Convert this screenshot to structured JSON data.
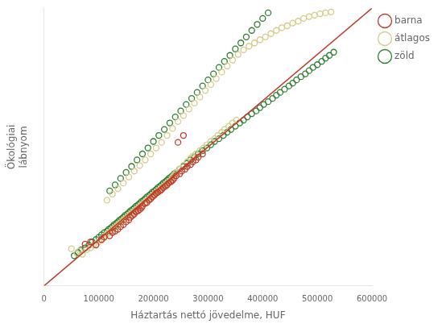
{
  "chart_data": {
    "type": "scatter",
    "xlabel": "Háztartás nettó jövedelme, HUF",
    "ylabel": "Ökológiai\nlábnyom",
    "xlim": [
      0,
      600000
    ],
    "ylim": [
      0,
      600000
    ],
    "xticks": [
      0,
      100000,
      200000,
      300000,
      400000,
      500000,
      600000
    ],
    "yticks": [
      0,
      100000,
      200000,
      300000,
      400000,
      500000,
      600000
    ],
    "tick_labels": "x",
    "grid": false,
    "legend": "right",
    "marker": "circle",
    "series": [
      {
        "type": "line",
        "color": "#c0392b",
        "values": [
          [
            0,
            0
          ],
          [
            600000,
            600000
          ]
        ]
      },
      {
        "name": "barna",
        "color": "#c0392b",
        "values": [
          [
            75000,
            90000
          ],
          [
            85000,
            95000
          ],
          [
            95000,
            88000
          ],
          [
            105000,
            100000
          ],
          [
            110000,
            105000
          ],
          [
            120000,
            108000
          ],
          [
            125000,
            115000
          ],
          [
            130000,
            118000
          ],
          [
            135000,
            122000
          ],
          [
            140000,
            128000
          ],
          [
            145000,
            132000
          ],
          [
            150000,
            138000
          ],
          [
            155000,
            142000
          ],
          [
            158000,
            148000
          ],
          [
            162000,
            152000
          ],
          [
            165000,
            155000
          ],
          [
            168000,
            160000
          ],
          [
            172000,
            162000
          ],
          [
            175000,
            165000
          ],
          [
            178000,
            168000
          ],
          [
            180000,
            172000
          ],
          [
            185000,
            178000
          ],
          [
            188000,
            180000
          ],
          [
            192000,
            185000
          ],
          [
            195000,
            188000
          ],
          [
            198000,
            192000
          ],
          [
            202000,
            196000
          ],
          [
            205000,
            200000
          ],
          [
            208000,
            202000
          ],
          [
            212000,
            205000
          ],
          [
            215000,
            208000
          ],
          [
            218000,
            212000
          ],
          [
            222000,
            215000
          ],
          [
            225000,
            218000
          ],
          [
            228000,
            222000
          ],
          [
            232000,
            225000
          ],
          [
            235000,
            228000
          ],
          [
            238000,
            232000
          ],
          [
            242000,
            238000
          ],
          [
            248000,
            242000
          ],
          [
            252000,
            248000
          ],
          [
            258000,
            252000
          ],
          [
            262000,
            258000
          ],
          [
            268000,
            262000
          ],
          [
            272000,
            268000
          ],
          [
            278000,
            272000
          ],
          [
            282000,
            278000
          ],
          [
            290000,
            285000
          ],
          [
            245000,
            310000
          ],
          [
            255000,
            325000
          ]
        ]
      },
      {
        "name": "átlagos",
        "color": "#d4cc88",
        "values": [
          [
            50000,
            80000
          ],
          [
            60000,
            70000
          ],
          [
            65000,
            75000
          ],
          [
            70000,
            68000
          ],
          [
            78000,
            78000
          ],
          [
            85000,
            82000
          ],
          [
            90000,
            88000
          ],
          [
            95000,
            90000
          ],
          [
            100000,
            95000
          ],
          [
            105000,
            98000
          ],
          [
            108000,
            102000
          ],
          [
            112000,
            108000
          ],
          [
            115000,
            112000
          ],
          [
            118000,
            115000
          ],
          [
            122000,
            118000
          ],
          [
            125000,
            122000
          ],
          [
            128000,
            125000
          ],
          [
            132000,
            128000
          ],
          [
            135000,
            132000
          ],
          [
            138000,
            135000
          ],
          [
            142000,
            138000
          ],
          [
            145000,
            142000
          ],
          [
            148000,
            145000
          ],
          [
            152000,
            148000
          ],
          [
            155000,
            152000
          ],
          [
            158000,
            155000
          ],
          [
            162000,
            158000
          ],
          [
            165000,
            162000
          ],
          [
            168000,
            165000
          ],
          [
            172000,
            168000
          ],
          [
            175000,
            172000
          ],
          [
            178000,
            175000
          ],
          [
            182000,
            178000
          ],
          [
            185000,
            182000
          ],
          [
            188000,
            185000
          ],
          [
            192000,
            188000
          ],
          [
            195000,
            192000
          ],
          [
            198000,
            195000
          ],
          [
            202000,
            198000
          ],
          [
            205000,
            202000
          ],
          [
            208000,
            205000
          ],
          [
            212000,
            208000
          ],
          [
            215000,
            212000
          ],
          [
            218000,
            215000
          ],
          [
            222000,
            218000
          ],
          [
            225000,
            222000
          ],
          [
            228000,
            225000
          ],
          [
            232000,
            228000
          ],
          [
            235000,
            235000
          ],
          [
            238000,
            240000
          ],
          [
            242000,
            245000
          ],
          [
            248000,
            252000
          ],
          [
            255000,
            260000
          ],
          [
            262000,
            268000
          ],
          [
            268000,
            275000
          ],
          [
            272000,
            280000
          ],
          [
            278000,
            285000
          ],
          [
            285000,
            292000
          ],
          [
            292000,
            298000
          ],
          [
            298000,
            305000
          ],
          [
            305000,
            312000
          ],
          [
            312000,
            318000
          ],
          [
            318000,
            325000
          ],
          [
            325000,
            332000
          ],
          [
            330000,
            338000
          ],
          [
            338000,
            345000
          ],
          [
            345000,
            352000
          ],
          [
            352000,
            358000
          ],
          [
            115000,
            185000
          ],
          [
            125000,
            198000
          ],
          [
            135000,
            210000
          ],
          [
            145000,
            222000
          ],
          [
            155000,
            235000
          ],
          [
            165000,
            248000
          ],
          [
            175000,
            260000
          ],
          [
            185000,
            272000
          ],
          [
            195000,
            285000
          ],
          [
            205000,
            298000
          ],
          [
            215000,
            310000
          ],
          [
            225000,
            325000
          ],
          [
            235000,
            340000
          ],
          [
            245000,
            355000
          ],
          [
            255000,
            368000
          ],
          [
            265000,
            382000
          ],
          [
            275000,
            395000
          ],
          [
            285000,
            408000
          ],
          [
            295000,
            422000
          ],
          [
            305000,
            435000
          ],
          [
            315000,
            448000
          ],
          [
            325000,
            462000
          ],
          [
            335000,
            475000
          ],
          [
            345000,
            488000
          ],
          [
            355000,
            500000
          ],
          [
            365000,
            510000
          ],
          [
            375000,
            518000
          ],
          [
            385000,
            525000
          ],
          [
            395000,
            532000
          ],
          [
            405000,
            538000
          ],
          [
            415000,
            545000
          ],
          [
            425000,
            552000
          ],
          [
            435000,
            558000
          ],
          [
            445000,
            562000
          ],
          [
            455000,
            568000
          ],
          [
            465000,
            572000
          ],
          [
            475000,
            578000
          ],
          [
            485000,
            582000
          ],
          [
            495000,
            585000
          ],
          [
            505000,
            588000
          ],
          [
            515000,
            590000
          ],
          [
            525000,
            592000
          ]
        ]
      },
      {
        "name": "zöld",
        "color": "#2e7d32",
        "values": [
          [
            55000,
            65000
          ],
          [
            62000,
            72000
          ],
          [
            68000,
            78000
          ],
          [
            75000,
            82000
          ],
          [
            82000,
            88000
          ],
          [
            88000,
            95000
          ],
          [
            95000,
            100000
          ],
          [
            100000,
            105000
          ],
          [
            105000,
            110000
          ],
          [
            110000,
            115000
          ],
          [
            115000,
            118000
          ],
          [
            118000,
            122000
          ],
          [
            122000,
            125000
          ],
          [
            125000,
            128000
          ],
          [
            128000,
            132000
          ],
          [
            132000,
            135000
          ],
          [
            135000,
            138000
          ],
          [
            138000,
            142000
          ],
          [
            142000,
            145000
          ],
          [
            145000,
            148000
          ],
          [
            148000,
            152000
          ],
          [
            152000,
            155000
          ],
          [
            155000,
            158000
          ],
          [
            158000,
            162000
          ],
          [
            162000,
            165000
          ],
          [
            165000,
            168000
          ],
          [
            168000,
            172000
          ],
          [
            172000,
            175000
          ],
          [
            175000,
            178000
          ],
          [
            178000,
            182000
          ],
          [
            182000,
            185000
          ],
          [
            185000,
            188000
          ],
          [
            188000,
            192000
          ],
          [
            192000,
            195000
          ],
          [
            195000,
            198000
          ],
          [
            198000,
            202000
          ],
          [
            202000,
            205000
          ],
          [
            205000,
            208000
          ],
          [
            208000,
            212000
          ],
          [
            212000,
            215000
          ],
          [
            215000,
            218000
          ],
          [
            218000,
            222000
          ],
          [
            222000,
            225000
          ],
          [
            225000,
            228000
          ],
          [
            228000,
            232000
          ],
          [
            232000,
            235000
          ],
          [
            235000,
            238000
          ],
          [
            238000,
            242000
          ],
          [
            242000,
            245000
          ],
          [
            248000,
            252000
          ],
          [
            255000,
            258000
          ],
          [
            262000,
            265000
          ],
          [
            268000,
            272000
          ],
          [
            275000,
            278000
          ],
          [
            282000,
            285000
          ],
          [
            290000,
            292000
          ],
          [
            298000,
            298000
          ],
          [
            305000,
            305000
          ],
          [
            312000,
            312000
          ],
          [
            320000,
            318000
          ],
          [
            328000,
            325000
          ],
          [
            335000,
            332000
          ],
          [
            342000,
            338000
          ],
          [
            350000,
            345000
          ],
          [
            358000,
            352000
          ],
          [
            365000,
            358000
          ],
          [
            372000,
            365000
          ],
          [
            380000,
            372000
          ],
          [
            388000,
            378000
          ],
          [
            395000,
            385000
          ],
          [
            402000,
            392000
          ],
          [
            410000,
            398000
          ],
          [
            418000,
            405000
          ],
          [
            425000,
            412000
          ],
          [
            432000,
            418000
          ],
          [
            440000,
            425000
          ],
          [
            448000,
            432000
          ],
          [
            455000,
            438000
          ],
          [
            462000,
            445000
          ],
          [
            470000,
            452000
          ],
          [
            478000,
            458000
          ],
          [
            485000,
            465000
          ],
          [
            492000,
            472000
          ],
          [
            500000,
            478000
          ],
          [
            508000,
            485000
          ],
          [
            515000,
            492000
          ],
          [
            522000,
            498000
          ],
          [
            530000,
            505000
          ],
          [
            120000,
            205000
          ],
          [
            130000,
            218000
          ],
          [
            140000,
            232000
          ],
          [
            150000,
            245000
          ],
          [
            160000,
            258000
          ],
          [
            170000,
            272000
          ],
          [
            180000,
            285000
          ],
          [
            190000,
            298000
          ],
          [
            200000,
            312000
          ],
          [
            210000,
            325000
          ],
          [
            220000,
            338000
          ],
          [
            230000,
            352000
          ],
          [
            240000,
            365000
          ],
          [
            250000,
            378000
          ],
          [
            260000,
            392000
          ],
          [
            270000,
            405000
          ],
          [
            280000,
            418000
          ],
          [
            290000,
            432000
          ],
          [
            300000,
            445000
          ],
          [
            310000,
            458000
          ],
          [
            320000,
            472000
          ],
          [
            330000,
            485000
          ],
          [
            340000,
            498000
          ],
          [
            350000,
            512000
          ],
          [
            360000,
            525000
          ],
          [
            370000,
            538000
          ],
          [
            380000,
            552000
          ],
          [
            390000,
            565000
          ],
          [
            400000,
            578000
          ],
          [
            410000,
            590000
          ]
        ]
      }
    ]
  }
}
